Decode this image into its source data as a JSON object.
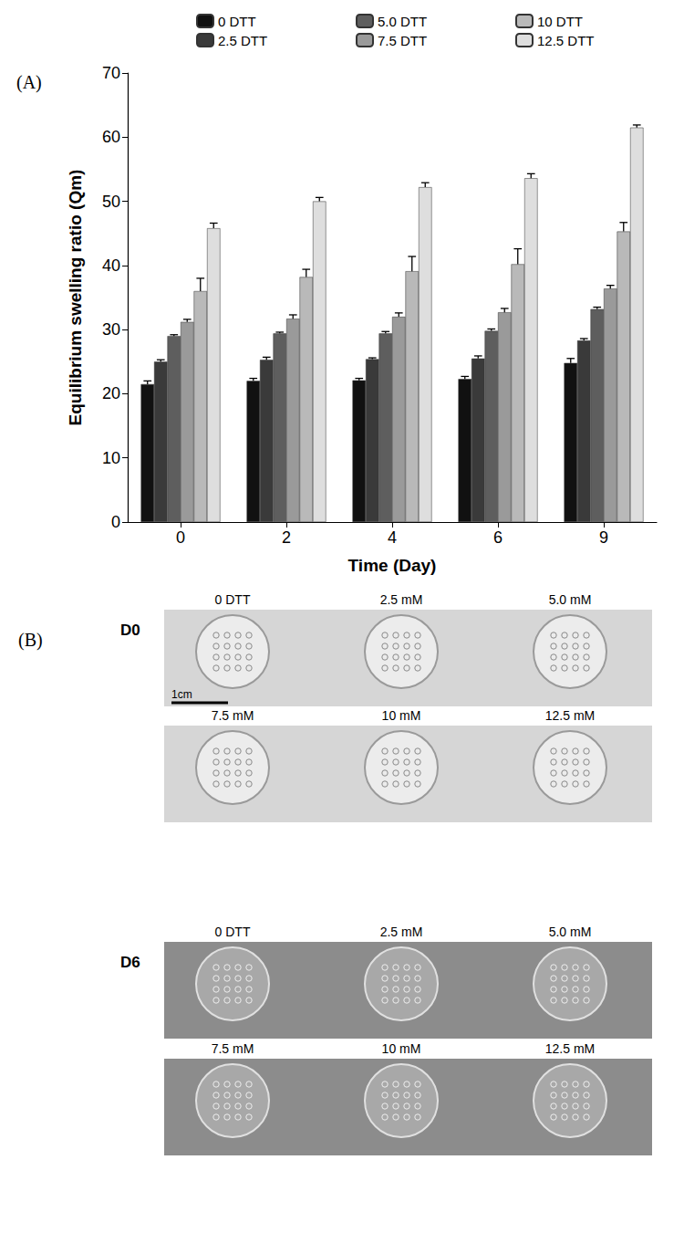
{
  "chart_data": {
    "type": "bar",
    "annotations": [
      "(A)"
    ],
    "x_label": "Time (Day)",
    "y_label": "Equilibrium swelling ratio (Qm)",
    "categories": [
      "0",
      "2",
      "4",
      "6",
      "9"
    ],
    "series": [
      {
        "name": "0 DTT",
        "color": "#111111",
        "values": [
          21.5,
          22.0,
          22.1,
          22.3,
          24.8
        ],
        "errors": [
          0.5,
          0.4,
          0.3,
          0.4,
          0.7
        ]
      },
      {
        "name": "2.5 DTT",
        "color": "#3a3a3a",
        "values": [
          25.0,
          25.3,
          25.4,
          25.5,
          28.3
        ],
        "errors": [
          0.3,
          0.4,
          0.2,
          0.4,
          0.3
        ]
      },
      {
        "name": "5.0 DTT",
        "color": "#5e5e5e",
        "values": [
          29.0,
          29.4,
          29.4,
          29.8,
          33.2
        ],
        "errors": [
          0.2,
          0.2,
          0.3,
          0.3,
          0.3
        ]
      },
      {
        "name": "7.5 DTT",
        "color": "#9a9a9a",
        "values": [
          31.2,
          31.7,
          32.0,
          32.7,
          36.4
        ],
        "errors": [
          0.4,
          0.6,
          0.6,
          0.6,
          0.5
        ]
      },
      {
        "name": "10 DTT",
        "color": "#b9b9b9",
        "values": [
          36.0,
          38.2,
          39.1,
          40.2,
          45.3
        ],
        "errors": [
          2.0,
          1.2,
          2.3,
          2.4,
          1.4
        ]
      },
      {
        "name": "12.5 DTT",
        "color": "#dedede",
        "values": [
          45.8,
          50.0,
          52.2,
          53.6,
          61.5
        ],
        "errors": [
          0.8,
          0.6,
          0.7,
          0.7,
          0.4
        ]
      }
    ],
    "ylim": [
      0,
      70
    ],
    "yticks": [
      0,
      10,
      20,
      30,
      40,
      50,
      60,
      70
    ],
    "grid": false,
    "legend": "top"
  },
  "photos": {
    "panel_label": "(B)",
    "scale_bar": "1cm",
    "groups": [
      {
        "day": "D0",
        "rows": [
          [
            "0 DTT",
            "2.5 mM",
            "5.0 mM"
          ],
          [
            "7.5 mM",
            "10 mM",
            "12.5 mM"
          ]
        ]
      },
      {
        "day": "D6",
        "rows": [
          [
            "0 DTT",
            "2.5 mM",
            "5.0 mM"
          ],
          [
            "7.5 mM",
            "10 mM",
            "12.5 mM"
          ]
        ]
      }
    ]
  }
}
